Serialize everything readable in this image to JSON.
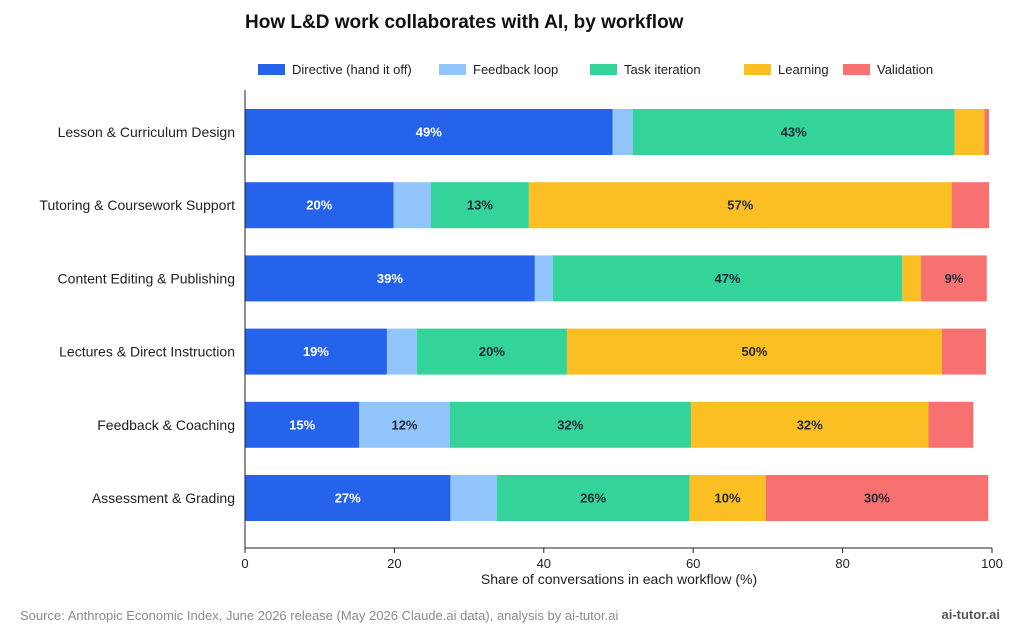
{
  "chart_data": {
    "type": "bar",
    "orientation": "horizontal",
    "stacked": true,
    "title": "How L&D work collaborates with AI, by workflow",
    "xlabel": "Share of conversations in each workflow (%)",
    "ylabel": "",
    "xlim": [
      0,
      100
    ],
    "xticks": [
      0,
      20,
      40,
      60,
      80,
      100
    ],
    "grid": false,
    "legend_position": "top",
    "categories": [
      "Lesson & Curriculum Design",
      "Tutoring & Coursework Support",
      "Content Editing & Publishing",
      "Lectures & Direct Instruction",
      "Feedback & Coaching",
      "Assessment & Grading"
    ],
    "series": [
      {
        "name": "Directive (hand it off)",
        "color": "#2563eb",
        "label_color": "#ffffff",
        "values": [
          49.2,
          19.9,
          38.8,
          19.0,
          15.3,
          27.5
        ]
      },
      {
        "name": "Feedback loop",
        "color": "#93c5fd",
        "label_color": "#1f2937",
        "values": [
          2.7,
          5.0,
          2.4,
          4.0,
          12.1,
          6.2
        ]
      },
      {
        "name": "Task iteration",
        "color": "#34d399",
        "label_color": "#1f2937",
        "values": [
          43.1,
          13.1,
          46.8,
          20.1,
          32.3,
          25.8
        ]
      },
      {
        "name": "Learning",
        "color": "#fbbf24",
        "label_color": "#1f2937",
        "values": [
          4.0,
          56.6,
          2.5,
          50.2,
          31.8,
          10.2
        ]
      },
      {
        "name": "Validation",
        "color": "#f87171",
        "label_color": "#1f2937",
        "values": [
          0.6,
          5.0,
          8.8,
          5.9,
          6.0,
          29.8
        ]
      }
    ],
    "data_labels": [
      [
        "49%",
        "",
        "43%",
        "",
        ""
      ],
      [
        "20%",
        "",
        "13%",
        "57%",
        ""
      ],
      [
        "39%",
        "",
        "47%",
        "",
        "9%"
      ],
      [
        "19%",
        "",
        "20%",
        "50%",
        ""
      ],
      [
        "15%",
        "12%",
        "32%",
        "32%",
        ""
      ],
      [
        "27%",
        "",
        "26%",
        "10%",
        "30%"
      ]
    ]
  },
  "footer": {
    "source": "Source: Anthropic Economic Index, June 2026 release (May 2026 Claude.ai data), analysis by ai-tutor.ai",
    "brand": "ai-tutor.ai"
  }
}
